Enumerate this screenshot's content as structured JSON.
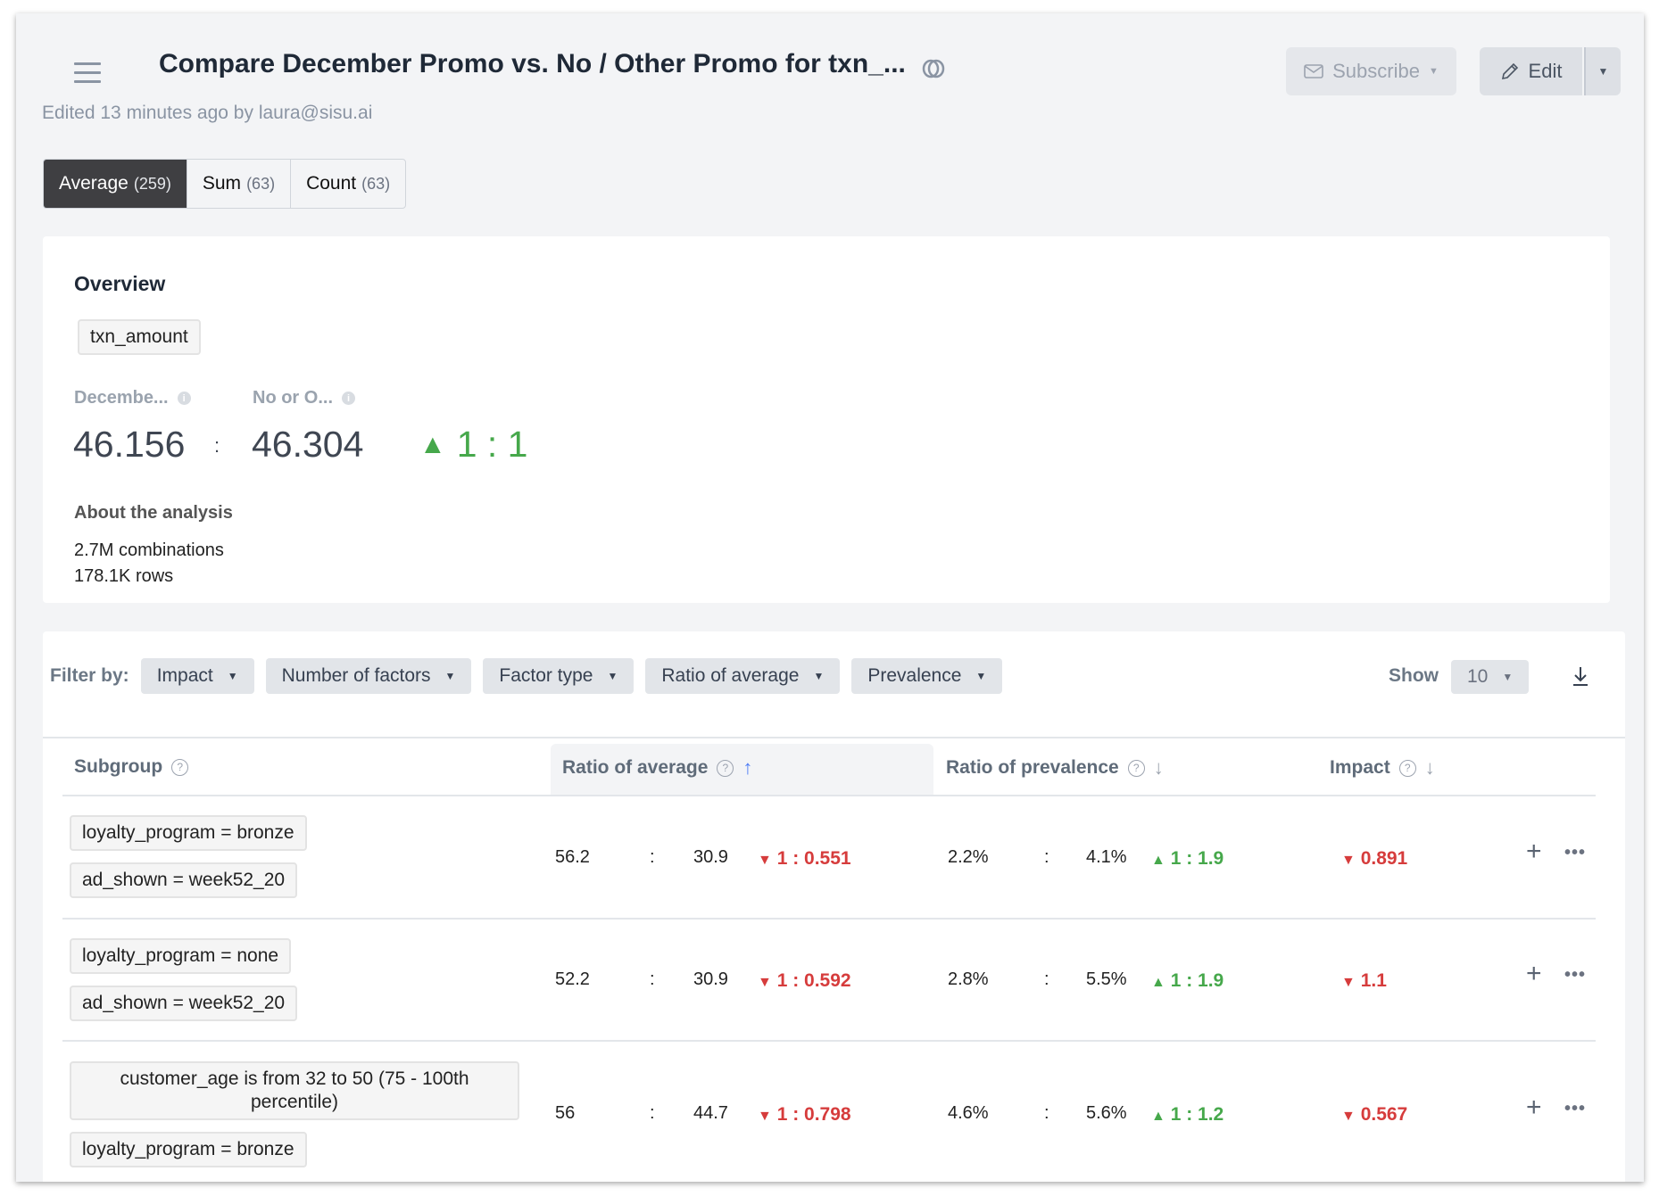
{
  "header": {
    "title": "Compare December Promo vs. No / Other Promo for txn_...",
    "subtitle": "Edited 13 minutes ago by laura@sisu.ai",
    "subscribe_label": "Subscribe",
    "edit_label": "Edit"
  },
  "tabs": [
    {
      "label": "Average",
      "count": "(259)"
    },
    {
      "label": "Sum",
      "count": "(63)"
    },
    {
      "label": "Count",
      "count": "(63)"
    }
  ],
  "overview": {
    "title": "Overview",
    "metric": "txn_amount",
    "group_a_label": "Decembe...",
    "group_b_label": "No or O...",
    "value_a": "46.156",
    "separator": ":",
    "value_b": "46.304",
    "ratio": "1 : 1",
    "about_title": "About the analysis",
    "combinations": "2.7M combinations",
    "rows": "178.1K rows"
  },
  "filters": {
    "label": "Filter by:",
    "items": [
      "Impact",
      "Number of factors",
      "Factor type",
      "Ratio of average",
      "Prevalence"
    ],
    "show_label": "Show",
    "show_value": "10"
  },
  "table": {
    "headers": [
      "Subgroup",
      "Ratio of average",
      "Ratio of prevalence",
      "Impact"
    ],
    "rows": [
      {
        "chips": [
          "loyalty_program = bronze",
          "ad_shown = week52_20"
        ],
        "avg_a": "56.2",
        "avg_b": "30.9",
        "avg_ratio": "1 : 0.551",
        "prev_a": "2.2%",
        "prev_b": "4.1%",
        "prev_ratio": "1 : 1.9",
        "impact": "0.891"
      },
      {
        "chips": [
          "loyalty_program = none",
          "ad_shown = week52_20"
        ],
        "avg_a": "52.2",
        "avg_b": "30.9",
        "avg_ratio": "1 : 0.592",
        "prev_a": "2.8%",
        "prev_b": "5.5%",
        "prev_ratio": "1 : 1.9",
        "impact": "1.1"
      },
      {
        "chips": [
          "customer_age is from 32 to 50 (75 - 100th percentile)",
          "loyalty_program = bronze"
        ],
        "avg_a": "56",
        "avg_b": "44.7",
        "avg_ratio": "1 : 0.798",
        "prev_a": "4.6%",
        "prev_b": "5.6%",
        "prev_ratio": "1 : 1.2",
        "impact": "0.567"
      }
    ]
  },
  "colors": {
    "up": "#46a84b",
    "down": "#d63c3c",
    "accent": "#4f7df5"
  }
}
